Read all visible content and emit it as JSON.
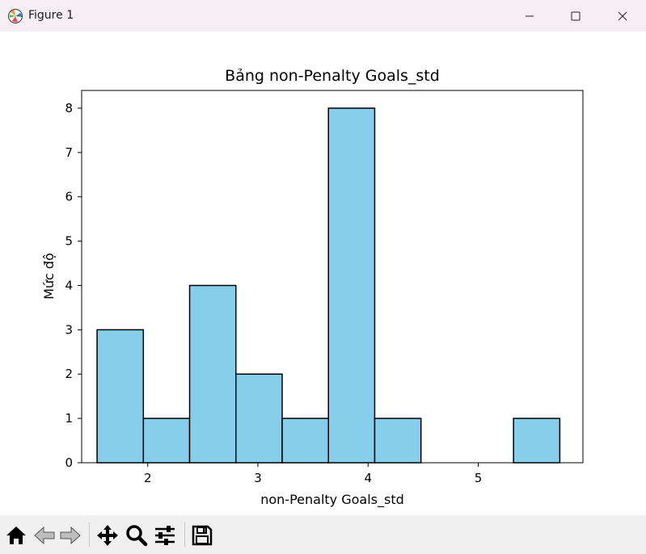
{
  "window": {
    "title": "Figure 1",
    "icons": {
      "app": "matplotlib-figure-icon",
      "minimize": "minimize-icon",
      "maximize": "maximize-icon",
      "close": "close-icon"
    }
  },
  "toolbar": {
    "tools": [
      {
        "name": "home-icon",
        "label": "Home"
      },
      {
        "name": "back-arrow-icon",
        "label": "Back"
      },
      {
        "name": "forward-arrow-icon",
        "label": "Forward"
      },
      {
        "name": "pan-move-icon",
        "label": "Pan"
      },
      {
        "name": "zoom-magnifier-icon",
        "label": "Zoom"
      },
      {
        "name": "configure-subplots-icon",
        "label": "Configure subplots"
      },
      {
        "name": "save-floppy-icon",
        "label": "Save"
      }
    ]
  },
  "chart_data": {
    "type": "bar",
    "title": "Bảng non-Penalty Goals_std",
    "xlabel": "non-Penalty Goals_std",
    "ylabel": "Mức độ",
    "x_ticks": [
      2,
      3,
      4,
      5
    ],
    "y_ticks": [
      0,
      1,
      2,
      3,
      4,
      5,
      6,
      7,
      8
    ],
    "xlim": [
      1.4,
      5.95
    ],
    "ylim": [
      0,
      8.4
    ],
    "bin_edges": [
      1.54,
      1.96,
      2.38,
      2.8,
      3.22,
      3.64,
      4.06,
      4.48,
      4.9,
      5.32,
      5.74
    ],
    "values": [
      3,
      1,
      4,
      2,
      1,
      8,
      1,
      0,
      0,
      1
    ],
    "grid": false,
    "bar_color": "#87ceeb",
    "edge_color": "#000000"
  }
}
